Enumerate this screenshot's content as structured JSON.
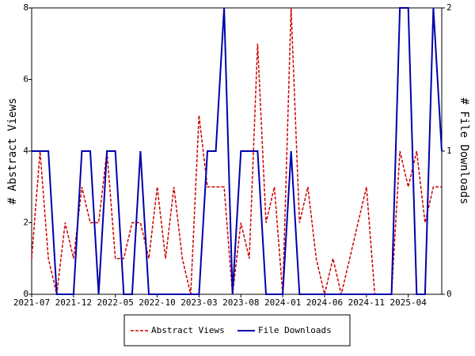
{
  "chart_data": {
    "type": "line",
    "categories": [
      "2021-07",
      null,
      null,
      null,
      null,
      "2021-12",
      null,
      null,
      null,
      null,
      "2022-05",
      null,
      null,
      null,
      null,
      "2022-10",
      null,
      null,
      null,
      null,
      "2023-03",
      null,
      null,
      null,
      null,
      "2023-08",
      null,
      null,
      null,
      null,
      "2024-01",
      null,
      null,
      null,
      null,
      "2024-06",
      null,
      null,
      null,
      null,
      "2024-11",
      null,
      null,
      null,
      null,
      "2025-04",
      null,
      null,
      null,
      null
    ],
    "series": [
      {
        "name": "Abstract Views",
        "color": "#cc0000",
        "dashed": true,
        "values": [
          1,
          4,
          1,
          0,
          2,
          1,
          3,
          2,
          2,
          4,
          1,
          1,
          2,
          2,
          1,
          3,
          1,
          3,
          1,
          0,
          5,
          3,
          3,
          3,
          0,
          2,
          1,
          7,
          2,
          3,
          0,
          8,
          2,
          3,
          1,
          0,
          1,
          0,
          1,
          2,
          3,
          0,
          0,
          0,
          4,
          3,
          4,
          2,
          3,
          3
        ]
      },
      {
        "name": "File Downloads",
        "color": "#0000aa",
        "axis": "y2",
        "values": [
          1,
          1,
          1,
          0,
          0,
          0,
          1,
          1,
          0,
          1,
          1,
          0,
          0,
          1,
          0,
          0,
          0,
          0,
          0,
          0,
          0,
          1,
          1,
          2,
          0,
          1,
          1,
          1,
          0,
          0,
          0,
          1,
          0,
          0,
          0,
          0,
          0,
          0,
          0,
          0,
          0,
          0,
          0,
          0,
          2,
          2,
          0,
          0,
          2,
          1
        ]
      }
    ],
    "ylabel": "# Abstract Views",
    "y2label": "# File Downloads",
    "ylim": [
      0,
      8
    ],
    "yticks": [
      0,
      2,
      4,
      6,
      8
    ],
    "y2lim": [
      0,
      2
    ],
    "y2ticks": [
      0,
      1,
      2
    ],
    "legend": "bottom",
    "grid": false
  }
}
